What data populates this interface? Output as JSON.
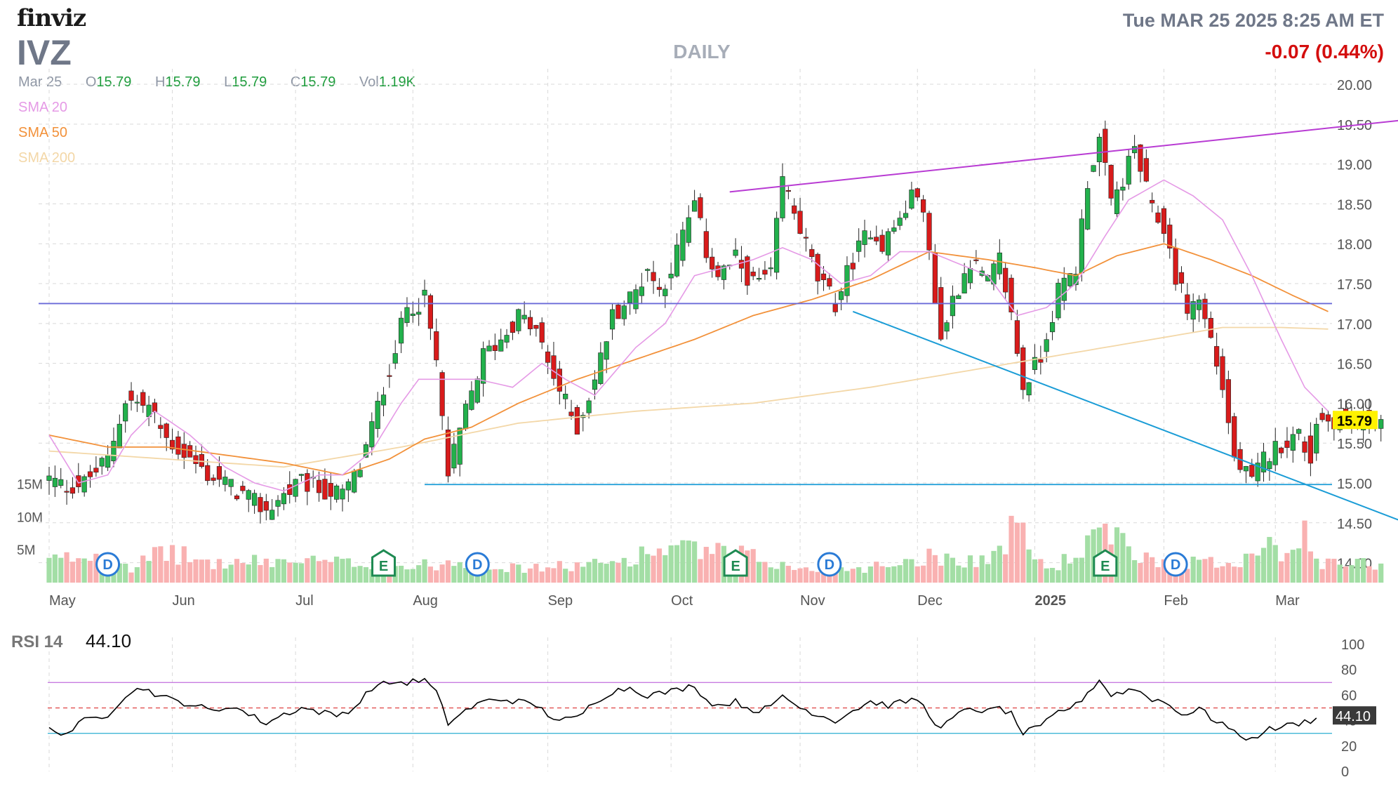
{
  "header": {
    "logo": "finviz",
    "ticker": "IVZ",
    "period": "DAILY",
    "datetime": "Tue MAR 25 2025 8:25 AM ET",
    "change": "-0.07 (0.44%)"
  },
  "ohlc": {
    "date": "Mar 25",
    "open_label": "O",
    "open": "15.79",
    "high_label": "H",
    "high": "15.79",
    "low_label": "L",
    "low": "15.79",
    "close_label": "C",
    "close": "15.79",
    "vol_label": "Vol",
    "vol": "1.19K"
  },
  "indicators": [
    {
      "label": "SMA 20",
      "color": "#e59ae6"
    },
    {
      "label": "SMA 50",
      "color": "#f2913a"
    },
    {
      "label": "SMA 200",
      "color": "#f3d7a7"
    }
  ],
  "colors": {
    "up": "#22b14c",
    "down": "#d81b1b",
    "vol_up": "#a3dea5",
    "vol_down": "#f9b1b1",
    "trend_top": "#b83bd3",
    "trend_down": "#1a9cd6",
    "hline_resist": "#6a6ad8",
    "hline_support": "#1a9cd6",
    "rsi_line": "#000000",
    "rsi_high": "#c77ce0",
    "rsi_low": "#3fb6d6",
    "rsi_mid": "#e35b5b",
    "last_price_bg": "#fff200",
    "rsi_value_bg": "#3a3a3a"
  },
  "chart_data": [
    {
      "type": "candlestick",
      "title": "IVZ DAILY",
      "x_labels": [
        "May",
        "Jun",
        "Jul",
        "Aug",
        "Sep",
        "Oct",
        "Nov",
        "Dec",
        "2025",
        "Feb",
        "Mar"
      ],
      "x_label_bar_index": [
        0,
        21,
        42,
        62,
        85,
        106,
        128,
        148,
        168,
        190,
        209
      ],
      "bar_count": 228,
      "y_ticks": [
        "20.00",
        "19.50",
        "19.00",
        "18.50",
        "18.00",
        "17.50",
        "17.00",
        "16.50",
        "16.00",
        "15.50",
        "15.00",
        "14.50",
        "14.00"
      ],
      "ylim": [
        13.75,
        20.15
      ],
      "last_price": "15.79",
      "close_anchors": [
        [
          0,
          15.05
        ],
        [
          3,
          14.95
        ],
        [
          6,
          15.0
        ],
        [
          10,
          15.3
        ],
        [
          13,
          16.05
        ],
        [
          17,
          15.95
        ],
        [
          20,
          15.55
        ],
        [
          24,
          15.3
        ],
        [
          27,
          15.1
        ],
        [
          30,
          15.0
        ],
        [
          34,
          14.8
        ],
        [
          37,
          14.65
        ],
        [
          40,
          14.85
        ],
        [
          43,
          15.0
        ],
        [
          47,
          14.9
        ],
        [
          50,
          14.85
        ],
        [
          53,
          15.2
        ],
        [
          57,
          16.2
        ],
        [
          61,
          17.2
        ],
        [
          64,
          17.3
        ],
        [
          66,
          16.5
        ],
        [
          68,
          15.1
        ],
        [
          71,
          15.9
        ],
        [
          74,
          16.6
        ],
        [
          77,
          16.8
        ],
        [
          80,
          17.1
        ],
        [
          83,
          16.9
        ],
        [
          85,
          16.5
        ],
        [
          88,
          16.0
        ],
        [
          90,
          15.7
        ],
        [
          93,
          16.3
        ],
        [
          96,
          17.1
        ],
        [
          100,
          17.4
        ],
        [
          102,
          17.7
        ],
        [
          104,
          17.4
        ],
        [
          106,
          17.7
        ],
        [
          108,
          18.1
        ],
        [
          110,
          18.5
        ],
        [
          112,
          17.9
        ],
        [
          114,
          17.6
        ],
        [
          117,
          17.8
        ],
        [
          120,
          17.5
        ],
        [
          123,
          17.6
        ],
        [
          125,
          18.8
        ],
        [
          128,
          18.2
        ],
        [
          131,
          17.55
        ],
        [
          134,
          17.25
        ],
        [
          137,
          17.8
        ],
        [
          140,
          18.2
        ],
        [
          142,
          18.0
        ],
        [
          145,
          18.3
        ],
        [
          148,
          18.7
        ],
        [
          150,
          17.9
        ],
        [
          152,
          16.8
        ],
        [
          154,
          17.3
        ],
        [
          157,
          17.8
        ],
        [
          160,
          17.5
        ],
        [
          162,
          17.8
        ],
        [
          164,
          17.1
        ],
        [
          166,
          16.2
        ],
        [
          169,
          16.6
        ],
        [
          172,
          17.4
        ],
        [
          175,
          17.7
        ],
        [
          177,
          18.8
        ],
        [
          179,
          19.3
        ],
        [
          181,
          18.5
        ],
        [
          183,
          18.8
        ],
        [
          185,
          19.2
        ],
        [
          188,
          18.4
        ],
        [
          190,
          18.2
        ],
        [
          192,
          17.6
        ],
        [
          194,
          17.2
        ],
        [
          196,
          17.3
        ],
        [
          198,
          16.8
        ],
        [
          200,
          16.2
        ],
        [
          202,
          15.3
        ],
        [
          205,
          15.0
        ],
        [
          207,
          15.3
        ],
        [
          210,
          15.5
        ],
        [
          213,
          15.6
        ],
        [
          215,
          15.3
        ],
        [
          216,
          15.79
        ]
      ],
      "volume_ticks": [
        "15M",
        "10M",
        "5M"
      ],
      "volume_ylim": [
        0,
        16
      ],
      "volume_anchors": [
        [
          0,
          3.5
        ],
        [
          8,
          4.5
        ],
        [
          10,
          4.8
        ],
        [
          14,
          2.5
        ],
        [
          20,
          5
        ],
        [
          28,
          3
        ],
        [
          40,
          3.5
        ],
        [
          55,
          3
        ],
        [
          62,
          2.5
        ],
        [
          70,
          3.5
        ],
        [
          80,
          2.2
        ],
        [
          95,
          3
        ],
        [
          105,
          5.5
        ],
        [
          118,
          4.5
        ],
        [
          128,
          2
        ],
        [
          140,
          2.5
        ],
        [
          150,
          4.2
        ],
        [
          160,
          3.5
        ],
        [
          165,
          9
        ],
        [
          170,
          2
        ],
        [
          175,
          4.5
        ],
        [
          180,
          8
        ],
        [
          186,
          4
        ],
        [
          192,
          3.5
        ],
        [
          200,
          3
        ],
        [
          205,
          4.5
        ],
        [
          208,
          8
        ],
        [
          210,
          5
        ],
        [
          214,
          7.5
        ],
        [
          216,
          3
        ]
      ],
      "events": [
        {
          "label": "D",
          "kind": "dividend",
          "bar": 10
        },
        {
          "label": "E",
          "kind": "earnings",
          "bar": 57
        },
        {
          "label": "D",
          "kind": "dividend",
          "bar": 73
        },
        {
          "label": "E",
          "kind": "earnings",
          "bar": 117
        },
        {
          "label": "D",
          "kind": "dividend",
          "bar": 133
        },
        {
          "label": "E",
          "kind": "earnings",
          "bar": 180
        },
        {
          "label": "D",
          "kind": "dividend",
          "bar": 192
        }
      ],
      "trendlines": [
        {
          "name": "upper",
          "from": [
            116,
            18.65
          ],
          "to": [
            232,
            19.56
          ]
        },
        {
          "name": "lower",
          "from": [
            137,
            17.15
          ],
          "to": [
            232,
            14.48
          ]
        }
      ],
      "horizontal_lines": [
        {
          "name": "resistance",
          "value": 17.25
        },
        {
          "name": "support",
          "value": 14.98,
          "from_bar": 64
        }
      ],
      "sma20_anchors": [
        [
          0,
          15.6
        ],
        [
          5,
          15.0
        ],
        [
          10,
          15.1
        ],
        [
          14,
          15.6
        ],
        [
          18,
          15.9
        ],
        [
          24,
          15.6
        ],
        [
          30,
          15.2
        ],
        [
          35,
          15.0
        ],
        [
          40,
          14.9
        ],
        [
          46,
          15.1
        ],
        [
          50,
          15.1
        ],
        [
          55,
          15.4
        ],
        [
          60,
          16.0
        ],
        [
          63,
          16.3
        ],
        [
          68,
          16.3
        ],
        [
          73,
          16.3
        ],
        [
          79,
          16.2
        ],
        [
          84,
          16.5
        ],
        [
          88,
          16.3
        ],
        [
          93,
          16.1
        ],
        [
          100,
          16.7
        ],
        [
          105,
          17.0
        ],
        [
          110,
          17.6
        ],
        [
          115,
          17.7
        ],
        [
          120,
          17.8
        ],
        [
          125,
          17.95
        ],
        [
          130,
          17.8
        ],
        [
          135,
          17.5
        ],
        [
          140,
          17.6
        ],
        [
          145,
          17.9
        ],
        [
          150,
          17.9
        ],
        [
          155,
          17.75
        ],
        [
          160,
          17.6
        ],
        [
          165,
          17.1
        ],
        [
          170,
          17.2
        ],
        [
          175,
          17.5
        ],
        [
          180,
          18.1
        ],
        [
          184,
          18.55
        ],
        [
          190,
          18.8
        ],
        [
          195,
          18.6
        ],
        [
          200,
          18.3
        ],
        [
          205,
          17.6
        ],
        [
          210,
          16.8
        ],
        [
          214,
          16.2
        ],
        [
          218,
          15.9
        ]
      ],
      "sma50_anchors": [
        [
          0,
          15.6
        ],
        [
          10,
          15.45
        ],
        [
          20,
          15.45
        ],
        [
          30,
          15.35
        ],
        [
          40,
          15.25
        ],
        [
          50,
          15.1
        ],
        [
          58,
          15.3
        ],
        [
          64,
          15.55
        ],
        [
          72,
          15.7
        ],
        [
          80,
          16.0
        ],
        [
          90,
          16.3
        ],
        [
          100,
          16.55
        ],
        [
          110,
          16.8
        ],
        [
          120,
          17.1
        ],
        [
          130,
          17.3
        ],
        [
          140,
          17.55
        ],
        [
          150,
          17.9
        ],
        [
          160,
          17.8
        ],
        [
          168,
          17.7
        ],
        [
          175,
          17.6
        ],
        [
          182,
          17.85
        ],
        [
          190,
          18.0
        ],
        [
          198,
          17.8
        ],
        [
          205,
          17.6
        ],
        [
          212,
          17.35
        ],
        [
          218,
          17.15
        ]
      ],
      "sma200_anchors": [
        [
          0,
          15.4
        ],
        [
          20,
          15.3
        ],
        [
          40,
          15.2
        ],
        [
          60,
          15.45
        ],
        [
          80,
          15.75
        ],
        [
          100,
          15.9
        ],
        [
          120,
          16.0
        ],
        [
          140,
          16.2
        ],
        [
          160,
          16.45
        ],
        [
          180,
          16.7
        ],
        [
          200,
          16.95
        ],
        [
          210,
          16.95
        ],
        [
          218,
          16.93
        ]
      ]
    },
    {
      "type": "line",
      "title": "RSI 14",
      "value": "44.10",
      "y_ticks": [
        "100",
        "80",
        "60",
        "40",
        "20",
        "0"
      ],
      "ylim": [
        0,
        100
      ],
      "reference_lines": [
        70,
        50,
        30
      ],
      "rsi_anchors": [
        [
          0,
          33
        ],
        [
          3,
          30
        ],
        [
          6,
          40
        ],
        [
          10,
          45
        ],
        [
          13,
          60
        ],
        [
          16,
          66
        ],
        [
          19,
          59
        ],
        [
          22,
          55
        ],
        [
          25,
          52
        ],
        [
          28,
          47
        ],
        [
          31,
          52
        ],
        [
          34,
          45
        ],
        [
          37,
          38
        ],
        [
          40,
          45
        ],
        [
          43,
          50
        ],
        [
          46,
          47
        ],
        [
          49,
          44
        ],
        [
          52,
          50
        ],
        [
          55,
          66
        ],
        [
          58,
          70
        ],
        [
          61,
          70
        ],
        [
          64,
          72
        ],
        [
          66,
          62
        ],
        [
          68,
          38
        ],
        [
          71,
          48
        ],
        [
          74,
          55
        ],
        [
          77,
          57
        ],
        [
          80,
          55
        ],
        [
          83,
          52
        ],
        [
          85,
          45
        ],
        [
          87,
          40
        ],
        [
          90,
          42
        ],
        [
          93,
          55
        ],
        [
          96,
          63
        ],
        [
          99,
          66
        ],
        [
          102,
          60
        ],
        [
          106,
          63
        ],
        [
          110,
          68
        ],
        [
          112,
          56
        ],
        [
          114,
          52
        ],
        [
          117,
          55
        ],
        [
          120,
          48
        ],
        [
          123,
          50
        ],
        [
          125,
          60
        ],
        [
          128,
          50
        ],
        [
          131,
          45
        ],
        [
          134,
          40
        ],
        [
          137,
          48
        ],
        [
          140,
          55
        ],
        [
          143,
          52
        ],
        [
          146,
          55
        ],
        [
          148,
          57
        ],
        [
          150,
          45
        ],
        [
          152,
          33
        ],
        [
          154,
          42
        ],
        [
          157,
          50
        ],
        [
          160,
          47
        ],
        [
          162,
          50
        ],
        [
          164,
          45
        ],
        [
          166,
          30
        ],
        [
          169,
          35
        ],
        [
          172,
          47
        ],
        [
          175,
          52
        ],
        [
          177,
          62
        ],
        [
          179,
          72
        ],
        [
          181,
          60
        ],
        [
          183,
          63
        ],
        [
          185,
          65
        ],
        [
          188,
          57
        ],
        [
          190,
          55
        ],
        [
          192,
          48
        ],
        [
          194,
          45
        ],
        [
          196,
          50
        ],
        [
          198,
          42
        ],
        [
          200,
          38
        ],
        [
          202,
          30
        ],
        [
          205,
          25
        ],
        [
          207,
          32
        ],
        [
          210,
          35
        ],
        [
          213,
          38
        ],
        [
          215,
          40
        ],
        [
          216,
          44
        ]
      ]
    }
  ]
}
